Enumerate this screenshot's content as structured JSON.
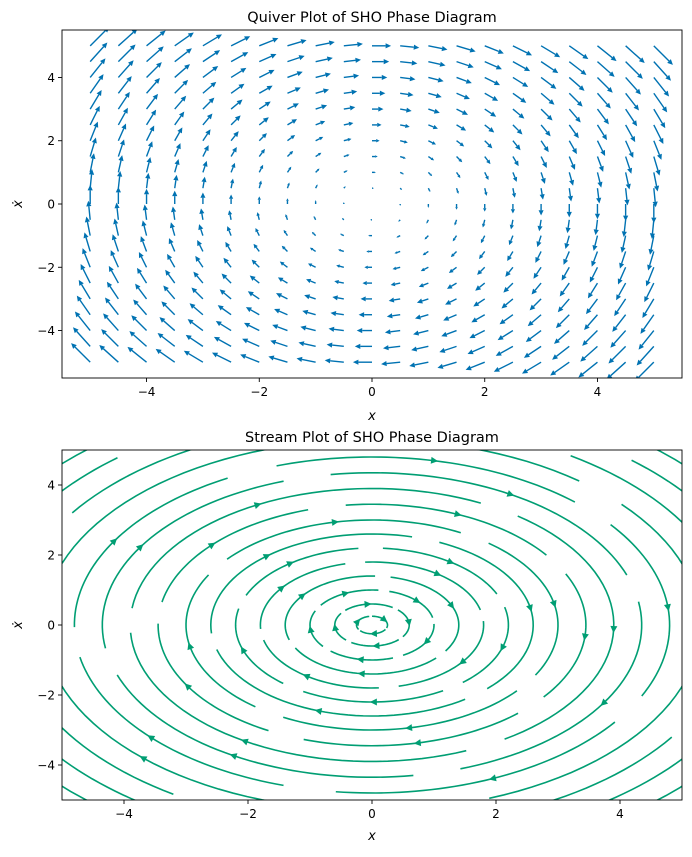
{
  "colors": {
    "quiver": "#0072b2",
    "stream": "#009e73",
    "axes": "#000000",
    "background": "#ffffff"
  },
  "chart_data": [
    {
      "type": "quiver",
      "title": "Quiver Plot of SHO Phase Diagram",
      "xlabel": "x",
      "ylabel": "ẋ",
      "xlim": [
        -5.5,
        5.5
      ],
      "ylim": [
        -5.5,
        5.5
      ],
      "xticks": [
        -4,
        -2,
        0,
        2,
        4
      ],
      "yticks": [
        -4,
        -2,
        0,
        2,
        4
      ],
      "xticklabels": [
        "−4",
        "−2",
        "0",
        "2",
        "4"
      ],
      "yticklabels": [
        "−4",
        "−2",
        "0",
        "2",
        "4"
      ],
      "grid": false,
      "field": {
        "u": "xdot",
        "v": "-x"
      },
      "sample_x": {
        "start": -5,
        "stop": 5,
        "n": 21
      },
      "sample_y": {
        "start": -5,
        "stop": 5,
        "n": 21
      }
    },
    {
      "type": "stream",
      "title": "Stream Plot of SHO Phase Diagram",
      "xlabel": "x",
      "ylabel": "ẋ",
      "xlim": [
        -5,
        5
      ],
      "ylim": [
        -5,
        5
      ],
      "xticks": [
        -4,
        -2,
        0,
        2,
        4
      ],
      "yticks": [
        -4,
        -2,
        0,
        2,
        4
      ],
      "xticklabels": [
        "−4",
        "−2",
        "0",
        "2",
        "4"
      ],
      "yticklabels": [
        "−4",
        "−2",
        "0",
        "2",
        "4"
      ],
      "grid": false,
      "field": {
        "u": "xdot",
        "v": "-x"
      },
      "orbit_radii": [
        0.25,
        0.6,
        1.0,
        1.4,
        1.8,
        2.2,
        2.6,
        3.0,
        3.45,
        3.9,
        4.35,
        4.8,
        5.3,
        5.8,
        6.3,
        6.8
      ]
    }
  ]
}
